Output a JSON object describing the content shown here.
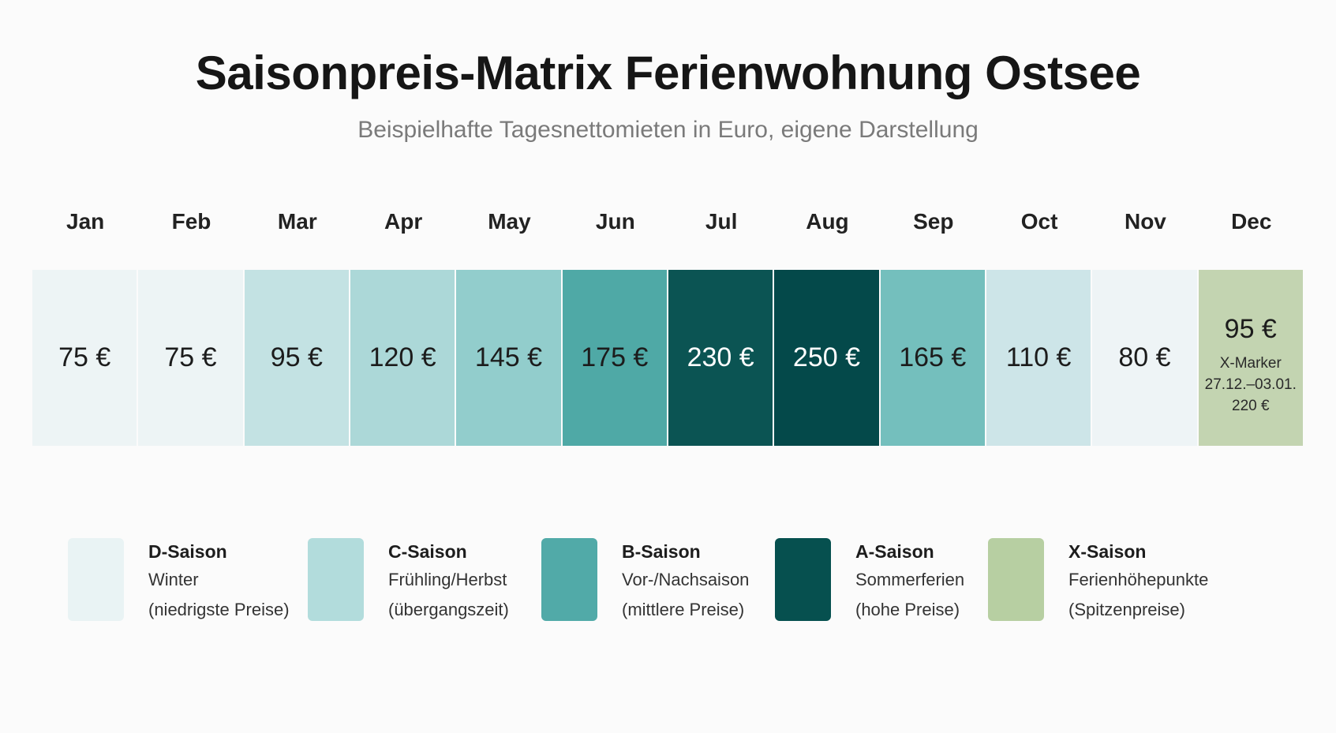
{
  "title": "Saisonpreis-Matrix Ferienwohnung Ostsee",
  "subtitle": "Beispielhafte Tagesnettomieten in Euro, eigene Darstellung",
  "colors": {
    "D": "#e9f3f4",
    "C": "#b2dcdc",
    "B": "#51aaa8",
    "A": "#06504f",
    "X": "#b7cfa2"
  },
  "chart_data": {
    "type": "heatmap",
    "title": "Saisonpreis-Matrix Ferienwohnung Ostsee",
    "subtitle": "Beispielhafte Tagesnettomieten in Euro, eigene Darstellung",
    "unit": "€",
    "categories": [
      "Jan",
      "Feb",
      "Mar",
      "Apr",
      "May",
      "Jun",
      "Jul",
      "Aug",
      "Sep",
      "Oct",
      "Nov",
      "Dec"
    ],
    "values": [
      75,
      75,
      95,
      120,
      145,
      175,
      230,
      250,
      165,
      110,
      80,
      95
    ],
    "labels": [
      "75 €",
      "75 €",
      "95 €",
      "120 €",
      "145 €",
      "175 €",
      "230 €",
      "250 €",
      "165 €",
      "110 €",
      "80 €",
      "95 €"
    ],
    "cell_colors": [
      "#edf4f5",
      "#edf4f5",
      "#c3e2e3",
      "#acd8d8",
      "#92cdcc",
      "#4fa9a6",
      "#0b5453",
      "#04494a",
      "#74bfbd",
      "#cde5e8",
      "#eef4f6",
      "#c3d4b1"
    ],
    "marker": {
      "month": "Dec",
      "lines": [
        "X-Marker",
        "27.12.–03.01.",
        "220 €"
      ],
      "period": "27.12.–03.01.",
      "value": 220
    }
  },
  "legend": [
    {
      "key": "D",
      "name": "D-Saison",
      "line1": "Winter",
      "line2": "(niedrigste Preise)"
    },
    {
      "key": "C",
      "name": "C-Saison",
      "line1": "Frühling/Herbst",
      "line2": "(übergangszeit)"
    },
    {
      "key": "B",
      "name": "B-Saison",
      "line1": "Vor-/Nachsaison",
      "line2": "(mittlere Preise)"
    },
    {
      "key": "A",
      "name": "A-Saison",
      "line1": "Sommerferien",
      "line2": "(hohe Preise)"
    },
    {
      "key": "X",
      "name": "X-Saison",
      "line1": "Ferienhöhepunkte",
      "line2": "(Spitzenpreise)"
    }
  ]
}
